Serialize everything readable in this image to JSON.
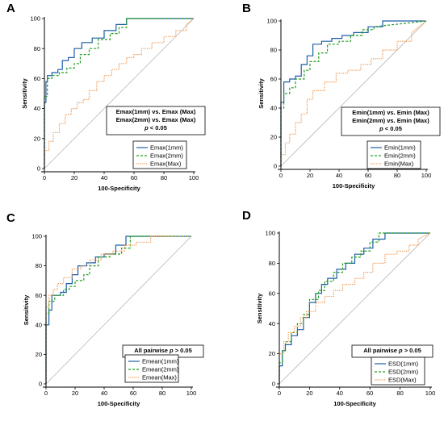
{
  "colors": {
    "series1": "#1f5ea8",
    "series2": "#22a022",
    "series3": "#ee9955",
    "diagonal": "#b8b8b8",
    "axis": "#000000"
  },
  "chart_data": [
    {
      "panel": "A",
      "type": "line",
      "xlabel": "100-Specificity",
      "ylabel": "Sensitivity",
      "xlim": [
        0,
        100
      ],
      "ylim": [
        0,
        100
      ],
      "xticks": [
        0,
        20,
        40,
        60,
        80,
        100
      ],
      "yticks": [
        0,
        20,
        40,
        60,
        80,
        100
      ],
      "annotation": [
        "Emax(1mm) vs. Emax (Max)",
        "Emax(2mm) vs. Emax (Max)",
        "p < 0.05"
      ],
      "legend_position": "bottom-right",
      "series": [
        {
          "name": "Emax(1mm)",
          "style": "solid",
          "color": "#1f5ea8",
          "x": [
            0,
            0,
            1,
            1,
            2,
            2,
            5,
            5,
            9,
            9,
            12,
            12,
            16,
            16,
            20,
            20,
            25,
            25,
            32,
            32,
            40,
            40,
            48,
            48,
            55,
            55,
            100
          ],
          "y": [
            0,
            44,
            44,
            58,
            58,
            62,
            62,
            64,
            64,
            66,
            66,
            72,
            72,
            74,
            74,
            80,
            80,
            84,
            84,
            87,
            87,
            92,
            92,
            96,
            96,
            100,
            100
          ]
        },
        {
          "name": "Emax(2mm)",
          "style": "dashed",
          "color": "#22a022",
          "x": [
            0,
            0,
            2,
            2,
            5,
            5,
            10,
            10,
            15,
            15,
            20,
            20,
            24,
            24,
            30,
            30,
            36,
            36,
            44,
            44,
            50,
            50,
            55,
            55,
            100
          ],
          "y": [
            0,
            48,
            48,
            60,
            60,
            62,
            62,
            64,
            64,
            67,
            67,
            70,
            70,
            76,
            76,
            80,
            80,
            86,
            86,
            90,
            90,
            94,
            94,
            100,
            100
          ]
        },
        {
          "name": "Emax(Max)",
          "style": "dotted",
          "color": "#ee9955",
          "x": [
            0,
            0,
            3,
            3,
            6,
            6,
            10,
            10,
            14,
            14,
            18,
            18,
            22,
            22,
            26,
            26,
            30,
            30,
            35,
            35,
            40,
            40,
            45,
            45,
            50,
            50,
            55,
            55,
            60,
            60,
            65,
            65,
            72,
            72,
            80,
            80,
            88,
            88,
            95,
            95,
            100
          ],
          "y": [
            0,
            12,
            12,
            18,
            18,
            24,
            24,
            30,
            30,
            36,
            36,
            40,
            40,
            44,
            44,
            46,
            46,
            52,
            52,
            58,
            58,
            62,
            62,
            66,
            66,
            70,
            70,
            74,
            74,
            76,
            76,
            80,
            80,
            84,
            84,
            88,
            88,
            92,
            92,
            96,
            100
          ]
        }
      ]
    },
    {
      "panel": "B",
      "type": "line",
      "xlabel": "100-Specificity",
      "ylabel": "Sensitivity",
      "xlim": [
        0,
        100
      ],
      "ylim": [
        0,
        100
      ],
      "xticks": [
        0,
        20,
        40,
        60,
        80,
        100
      ],
      "yticks": [
        0,
        20,
        40,
        60,
        80,
        100
      ],
      "annotation": [
        "Emin(1mm) vs. Emin (Max)",
        "Emin(2mm) vs. Emin (Max)",
        "p < 0.05"
      ],
      "legend_position": "bottom-right",
      "series": [
        {
          "name": "Emin(1mm)",
          "style": "solid",
          "color": "#1f5ea8",
          "x": [
            0,
            0,
            2,
            2,
            6,
            6,
            10,
            10,
            14,
            14,
            18,
            18,
            22,
            22,
            28,
            28,
            35,
            35,
            42,
            42,
            50,
            50,
            60,
            60,
            70,
            70,
            100
          ],
          "y": [
            0,
            44,
            44,
            58,
            58,
            60,
            60,
            62,
            62,
            70,
            70,
            76,
            76,
            84,
            84,
            86,
            86,
            88,
            88,
            90,
            90,
            92,
            92,
            96,
            96,
            100,
            100
          ]
        },
        {
          "name": "Emin(2mm)",
          "style": "dashed",
          "color": "#22a022",
          "x": [
            0,
            0,
            2,
            2,
            6,
            6,
            10,
            10,
            16,
            16,
            20,
            20,
            26,
            26,
            32,
            32,
            40,
            40,
            48,
            48,
            56,
            56,
            64,
            64,
            100
          ],
          "y": [
            0,
            40,
            40,
            50,
            50,
            54,
            54,
            60,
            60,
            66,
            66,
            72,
            72,
            78,
            78,
            84,
            84,
            86,
            86,
            90,
            90,
            94,
            94,
            96,
            100
          ]
        },
        {
          "name": "Emin(Max)",
          "style": "dotted",
          "color": "#ee9955",
          "x": [
            0,
            0,
            3,
            3,
            6,
            6,
            10,
            10,
            14,
            14,
            18,
            18,
            22,
            22,
            30,
            30,
            38,
            38,
            46,
            46,
            55,
            55,
            62,
            62,
            70,
            70,
            80,
            80,
            90,
            90,
            100
          ],
          "y": [
            0,
            8,
            8,
            16,
            16,
            22,
            22,
            30,
            30,
            36,
            36,
            46,
            46,
            52,
            52,
            58,
            58,
            64,
            64,
            66,
            66,
            70,
            70,
            74,
            74,
            80,
            80,
            86,
            86,
            92,
            100
          ]
        }
      ]
    },
    {
      "panel": "C",
      "type": "line",
      "xlabel": "100-Specificity",
      "ylabel": "Sensitivity",
      "xlim": [
        0,
        100
      ],
      "ylim": [
        0,
        100
      ],
      "xticks": [
        0,
        20,
        40,
        60,
        80,
        100
      ],
      "yticks": [
        0,
        20,
        40,
        60,
        80,
        100
      ],
      "annotation": [
        "All pairwise p > 0.05"
      ],
      "legend_position": "bottom-right",
      "series": [
        {
          "name": "Emean(1mm)",
          "style": "solid",
          "color": "#1f5ea8",
          "x": [
            0,
            0,
            2,
            2,
            4,
            4,
            10,
            10,
            14,
            14,
            18,
            18,
            22,
            22,
            28,
            28,
            34,
            34,
            40,
            40,
            48,
            48,
            55,
            55,
            100
          ],
          "y": [
            0,
            40,
            40,
            50,
            50,
            60,
            60,
            62,
            62,
            68,
            68,
            74,
            74,
            80,
            80,
            82,
            82,
            86,
            86,
            88,
            88,
            94,
            94,
            100,
            100
          ]
        },
        {
          "name": "Emean(2mm)",
          "style": "dashed",
          "color": "#22a022",
          "x": [
            0,
            0,
            2,
            2,
            6,
            6,
            12,
            12,
            16,
            16,
            20,
            20,
            26,
            26,
            30,
            30,
            36,
            36,
            44,
            44,
            52,
            52,
            58,
            58,
            100
          ],
          "y": [
            0,
            48,
            48,
            56,
            56,
            60,
            60,
            64,
            64,
            66,
            66,
            70,
            70,
            74,
            74,
            80,
            80,
            86,
            86,
            88,
            88,
            92,
            92,
            100,
            100
          ]
        },
        {
          "name": "Emean(Max)",
          "style": "dotted",
          "color": "#ee9955",
          "x": [
            0,
            0,
            2,
            2,
            5,
            5,
            8,
            8,
            12,
            12,
            18,
            18,
            24,
            24,
            30,
            30,
            38,
            38,
            46,
            46,
            54,
            54,
            62,
            62,
            72,
            72,
            100
          ],
          "y": [
            0,
            52,
            52,
            60,
            60,
            64,
            64,
            68,
            68,
            72,
            72,
            78,
            78,
            80,
            80,
            84,
            84,
            88,
            88,
            90,
            90,
            94,
            94,
            96,
            96,
            100,
            100
          ]
        }
      ]
    },
    {
      "panel": "D",
      "type": "line",
      "xlabel": "100-Specificity",
      "ylabel": "Sensitivity",
      "xlim": [
        0,
        100
      ],
      "ylim": [
        0,
        100
      ],
      "xticks": [
        0,
        20,
        40,
        60,
        80,
        100
      ],
      "yticks": [
        0,
        20,
        40,
        60,
        80,
        100
      ],
      "annotation": [
        "All pairwise p > 0.05"
      ],
      "legend_position": "bottom-right",
      "series": [
        {
          "name": "ESD(1mm)",
          "style": "solid",
          "color": "#1f5ea8",
          "x": [
            0,
            0,
            2,
            2,
            4,
            4,
            8,
            8,
            12,
            12,
            16,
            16,
            20,
            20,
            24,
            24,
            28,
            28,
            32,
            32,
            38,
            38,
            44,
            44,
            50,
            50,
            56,
            56,
            62,
            62,
            70,
            70,
            100
          ],
          "y": [
            0,
            12,
            12,
            22,
            22,
            26,
            26,
            32,
            32,
            36,
            36,
            44,
            44,
            54,
            54,
            60,
            60,
            66,
            66,
            70,
            70,
            76,
            76,
            80,
            80,
            86,
            86,
            90,
            90,
            96,
            96,
            100,
            100
          ]
        },
        {
          "name": "ESD(2mm)",
          "style": "dashed",
          "color": "#22a022",
          "x": [
            0,
            0,
            2,
            2,
            4,
            4,
            8,
            8,
            12,
            12,
            16,
            16,
            20,
            20,
            26,
            26,
            30,
            30,
            36,
            36,
            42,
            42,
            48,
            48,
            54,
            54,
            60,
            60,
            66,
            66,
            100
          ],
          "y": [
            0,
            14,
            14,
            22,
            22,
            28,
            28,
            34,
            34,
            40,
            40,
            46,
            46,
            56,
            56,
            62,
            62,
            68,
            68,
            74,
            74,
            80,
            80,
            84,
            84,
            88,
            88,
            94,
            94,
            100,
            100
          ]
        },
        {
          "name": "ESD(Max)",
          "style": "dotted",
          "color": "#ee9955",
          "x": [
            0,
            0,
            3,
            3,
            6,
            6,
            10,
            10,
            14,
            14,
            18,
            18,
            24,
            24,
            30,
            30,
            36,
            36,
            42,
            42,
            50,
            50,
            56,
            56,
            62,
            62,
            70,
            70,
            78,
            78,
            86,
            86,
            92,
            92,
            100
          ],
          "y": [
            0,
            20,
            20,
            28,
            28,
            34,
            34,
            38,
            38,
            44,
            44,
            48,
            48,
            54,
            54,
            58,
            58,
            62,
            62,
            66,
            66,
            70,
            70,
            74,
            74,
            80,
            80,
            86,
            86,
            88,
            88,
            92,
            92,
            96,
            100
          ]
        }
      ]
    }
  ]
}
